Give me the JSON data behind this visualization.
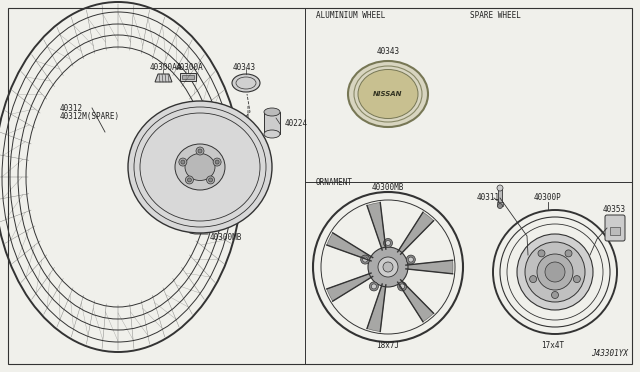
{
  "bg_color": "#f0f0eb",
  "line_color": "#333333",
  "text_color": "#222222",
  "diagram_id": "J43301YX",
  "aluminium_wheel_label": "ALUMINIUM WHEEL",
  "aluminium_wheel_size": "18x7J",
  "aluminium_wheel_part": "40300MB",
  "spare_wheel_label": "SPARE WHEEL",
  "spare_wheel_size": "17x4T",
  "spare_parts": [
    "40311",
    "40300P",
    "40353"
  ],
  "ornament_label": "ORNAMENT",
  "ornament_part": "40343",
  "left_label1": "40312",
  "left_label2": "40312M(SPARE)",
  "left_label3": "40300MB",
  "left_label4": "40224",
  "left_label5": "40300AA",
  "left_label6": "40300A",
  "left_label7": "40343"
}
